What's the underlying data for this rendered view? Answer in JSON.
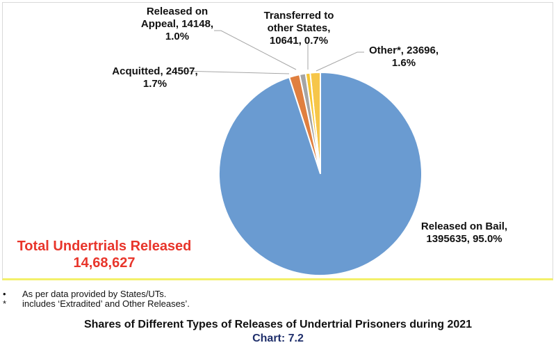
{
  "chart_data": {
    "type": "pie",
    "title": "Shares of Different Types of Releases of Undertrial Prisoners during 2021",
    "subtitle": "Chart: 7.2",
    "categories": [
      "Released on Bail",
      "Acquitted",
      "Released on Appeal",
      "Transferred to other States",
      "Other*"
    ],
    "values": [
      1395635,
      24507,
      14148,
      10641,
      23696
    ],
    "percentages": [
      95.0,
      1.7,
      1.0,
      0.7,
      1.6
    ],
    "colors": [
      "#6a9bd1",
      "#e07f3f",
      "#a5a5a5",
      "#f6c533",
      "#f6c64a"
    ],
    "total": 1468627
  },
  "labels": {
    "bail": [
      "Released on Bail,",
      "1395635, 95.0%"
    ],
    "acquitted": [
      "Acquitted, 24507,",
      "1.7%"
    ],
    "appeal": [
      "Released on",
      "Appeal, 14148,",
      "1.0%"
    ],
    "transferred": [
      "Transferred to",
      "other States,",
      "10641, 0.7%"
    ],
    "other": [
      "Other*, 23696,",
      "1.6%"
    ]
  },
  "total_box": {
    "line1": "Total Undertrials Released",
    "line2": "14,68,627"
  },
  "notes": [
    {
      "marker": "•",
      "text": "As per data provided by States/UTs."
    },
    {
      "marker": "*",
      "text": "includes ‘Extradited’ and Other Releases’."
    }
  ],
  "caption": {
    "title": "Shares of Different Types of Releases of Undertrial Prisoners during 2021",
    "chart_no": "Chart: 7.2"
  }
}
